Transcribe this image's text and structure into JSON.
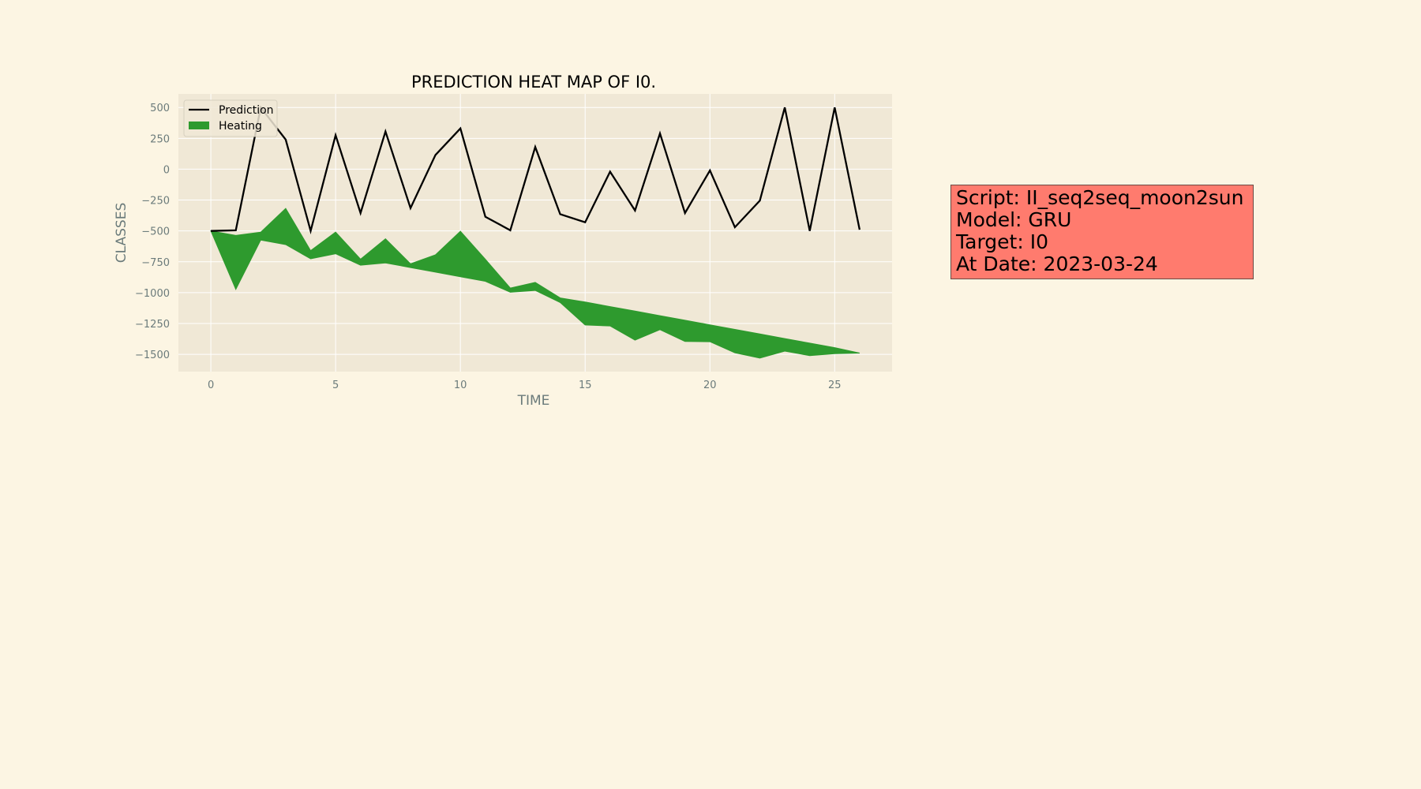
{
  "chart_data": {
    "type": "line",
    "title": "PREDICTION HEAT MAP OF I0.",
    "xlabel": "TIME",
    "ylabel": "CLASSES",
    "xlim": [
      -1.3,
      27.3
    ],
    "ylim": [
      -1640,
      610
    ],
    "xticks": [
      0,
      5,
      10,
      15,
      20,
      25
    ],
    "xtick_labels": [
      "0",
      "5",
      "10",
      "15",
      "20",
      "25"
    ],
    "yticks": [
      500,
      250,
      0,
      -250,
      -500,
      -750,
      -1000,
      -1250,
      -1500
    ],
    "ytick_labels": [
      "500",
      "250",
      "0",
      "−250",
      "−500",
      "−750",
      "−1000",
      "−1250",
      "−1500"
    ],
    "grid": true,
    "legend_position": "upper-left",
    "x": [
      0,
      1,
      2,
      3,
      4,
      5,
      6,
      7,
      8,
      9,
      10,
      11,
      12,
      13,
      14,
      15,
      16,
      17,
      18,
      19,
      20,
      21,
      22,
      23,
      24,
      25,
      26
    ],
    "series": [
      {
        "name": "Prediction",
        "type": "line",
        "color": "#000000",
        "values": [
          -500,
          -495,
          500,
          240,
          -500,
          275,
          -355,
          305,
          -315,
          115,
          330,
          -385,
          -495,
          180,
          -365,
          -430,
          -20,
          -335,
          290,
          -355,
          -10,
          -470,
          -255,
          500,
          -500,
          500,
          -490
        ]
      },
      {
        "name": "Heating",
        "type": "area",
        "color": "#2e9a2e",
        "upper": [
          -500,
          -537,
          -510,
          -318,
          -660,
          -510,
          -729,
          -564,
          -766,
          -694,
          -503,
          -730,
          -963,
          -917,
          -1043,
          -1076,
          -1113,
          -1150,
          -1187,
          -1224,
          -1261,
          -1298,
          -1335,
          -1372,
          -1409,
          -1446,
          -1490
        ],
        "lower": [
          -500,
          -973,
          -574,
          -611,
          -726,
          -685,
          -778,
          -759,
          -797,
          -834,
          -871,
          -908,
          -997,
          -982,
          -1080,
          -1262,
          -1270,
          -1385,
          -1300,
          -1395,
          -1398,
          -1488,
          -1530,
          -1474,
          -1510,
          -1495,
          -1490
        ]
      }
    ],
    "colors": {
      "figure_bg": "#fcf5e3",
      "axes_bg": "#f0e8d6",
      "grid": "#ffffff",
      "info_box_bg": "#ff7b6e"
    }
  },
  "info_box": {
    "lines": [
      "Script: II_seq2seq_moon2sun",
      "Model: GRU",
      "Target: I0",
      "At Date: 2023-03-24"
    ]
  }
}
